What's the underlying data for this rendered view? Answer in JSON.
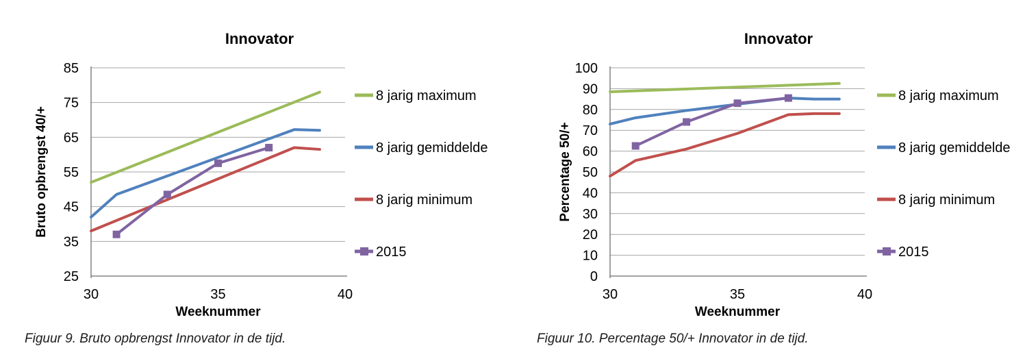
{
  "colors": {
    "series_max": "#9BBB59",
    "series_avg": "#4F81BD",
    "series_min": "#C0504D",
    "series_2015": "#8064A2",
    "gridline": "#A6A6A6",
    "axis_line": "#6E6E6E",
    "label_text": "#000000",
    "caption_text": "#1B1B1B"
  },
  "chart_data": [
    {
      "type": "line",
      "title": "Innovator",
      "xlabel": "Weeknummer",
      "ylabel": "Bruto opbrengst 40/+",
      "caption": "Figuur 9. Bruto opbrengst Innovator in de tijd.",
      "xlim": [
        30,
        40
      ],
      "ylim": [
        25,
        85
      ],
      "xticks": [
        30,
        35,
        40
      ],
      "yticks": [
        25,
        35,
        45,
        55,
        65,
        75,
        85
      ],
      "grid": true,
      "legend_position": "right",
      "series": [
        {
          "name": "8 jarig maximum",
          "color": "#9BBB59",
          "marker": "none",
          "points": [
            [
              30,
              52
            ],
            [
              39,
              78
            ]
          ]
        },
        {
          "name": "8 jarig gemiddelde",
          "color": "#4F81BD",
          "marker": "none",
          "points": [
            [
              30,
              42
            ],
            [
              31,
              48.5
            ],
            [
              38,
              67.2
            ],
            [
              39,
              67
            ]
          ]
        },
        {
          "name": "8 jarig minimum",
          "color": "#C0504D",
          "marker": "none",
          "points": [
            [
              30,
              38
            ],
            [
              38,
              62
            ],
            [
              39,
              61.5
            ]
          ]
        },
        {
          "name": "2015",
          "color": "#8064A2",
          "marker": "square",
          "points": [
            [
              31,
              37
            ],
            [
              33,
              48.5
            ],
            [
              35,
              57.5
            ],
            [
              37,
              62
            ]
          ]
        }
      ]
    },
    {
      "type": "line",
      "title": "Innovator",
      "xlabel": "Weeknummer",
      "ylabel": "Percentage 50/+",
      "caption": "Figuur 10. Percentage 50/+ Innovator in de tijd.",
      "xlim": [
        30,
        40
      ],
      "ylim": [
        0,
        100
      ],
      "xticks": [
        30,
        35,
        40
      ],
      "yticks": [
        0,
        10,
        20,
        30,
        40,
        50,
        60,
        70,
        80,
        90,
        100
      ],
      "grid": true,
      "legend_position": "right",
      "series": [
        {
          "name": "8 jarig maximum",
          "color": "#9BBB59",
          "marker": "none",
          "points": [
            [
              30,
              88.5
            ],
            [
              39,
              92.5
            ]
          ]
        },
        {
          "name": "8 jarig gemiddelde",
          "color": "#4F81BD",
          "marker": "none",
          "points": [
            [
              30,
              73
            ],
            [
              31,
              76
            ],
            [
              33,
              79.5
            ],
            [
              35,
              82.5
            ],
            [
              37,
              85.5
            ],
            [
              38,
              85
            ],
            [
              39,
              85
            ]
          ]
        },
        {
          "name": "8 jarig minimum",
          "color": "#C0504D",
          "marker": "none",
          "points": [
            [
              30,
              48
            ],
            [
              31,
              55.5
            ],
            [
              33,
              61
            ],
            [
              35,
              68.5
            ],
            [
              37,
              77.5
            ],
            [
              38,
              78
            ],
            [
              39,
              78
            ]
          ]
        },
        {
          "name": "2015",
          "color": "#8064A2",
          "marker": "square",
          "points": [
            [
              31,
              62.5
            ],
            [
              33,
              74
            ],
            [
              35,
              83
            ],
            [
              37,
              85.5
            ]
          ]
        }
      ]
    }
  ]
}
